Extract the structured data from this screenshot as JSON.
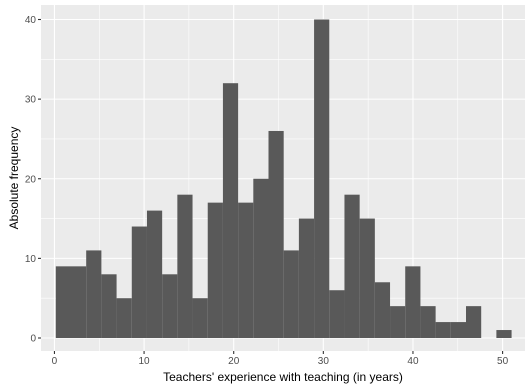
{
  "chart_data": {
    "type": "bar",
    "subtype": "histogram",
    "title": "",
    "xlabel": "Teachers' experience with teaching (in years)",
    "ylabel": "Absolute frequency",
    "bin_width": 1.695,
    "bin_centers": [
      1.0,
      2.695,
      4.39,
      6.085,
      7.78,
      9.475,
      11.17,
      12.865,
      14.56,
      16.255,
      17.95,
      19.645,
      21.34,
      23.035,
      24.73,
      26.425,
      28.12,
      29.815,
      31.51,
      33.205,
      34.9,
      36.595,
      38.29,
      39.985,
      41.68,
      43.375,
      45.07,
      46.765,
      48.46,
      50.155
    ],
    "values": [
      9,
      9,
      11,
      8,
      5,
      14,
      16,
      8,
      18,
      5,
      17,
      32,
      17,
      20,
      26,
      11,
      15,
      40,
      6,
      18,
      15,
      7,
      4,
      9,
      4,
      2,
      2,
      4,
      0,
      1
    ],
    "xlim": [
      -1.5,
      52.5
    ],
    "ylim": [
      0,
      41.5
    ],
    "x_ticks": [
      "0",
      "10",
      "20",
      "30",
      "40",
      "50"
    ],
    "y_ticks": [
      "0",
      "10",
      "20",
      "30",
      "40"
    ],
    "grid": true,
    "colors": {
      "bar": "#595959",
      "panel": "#ebebeb",
      "grid": "#ffffff"
    }
  }
}
